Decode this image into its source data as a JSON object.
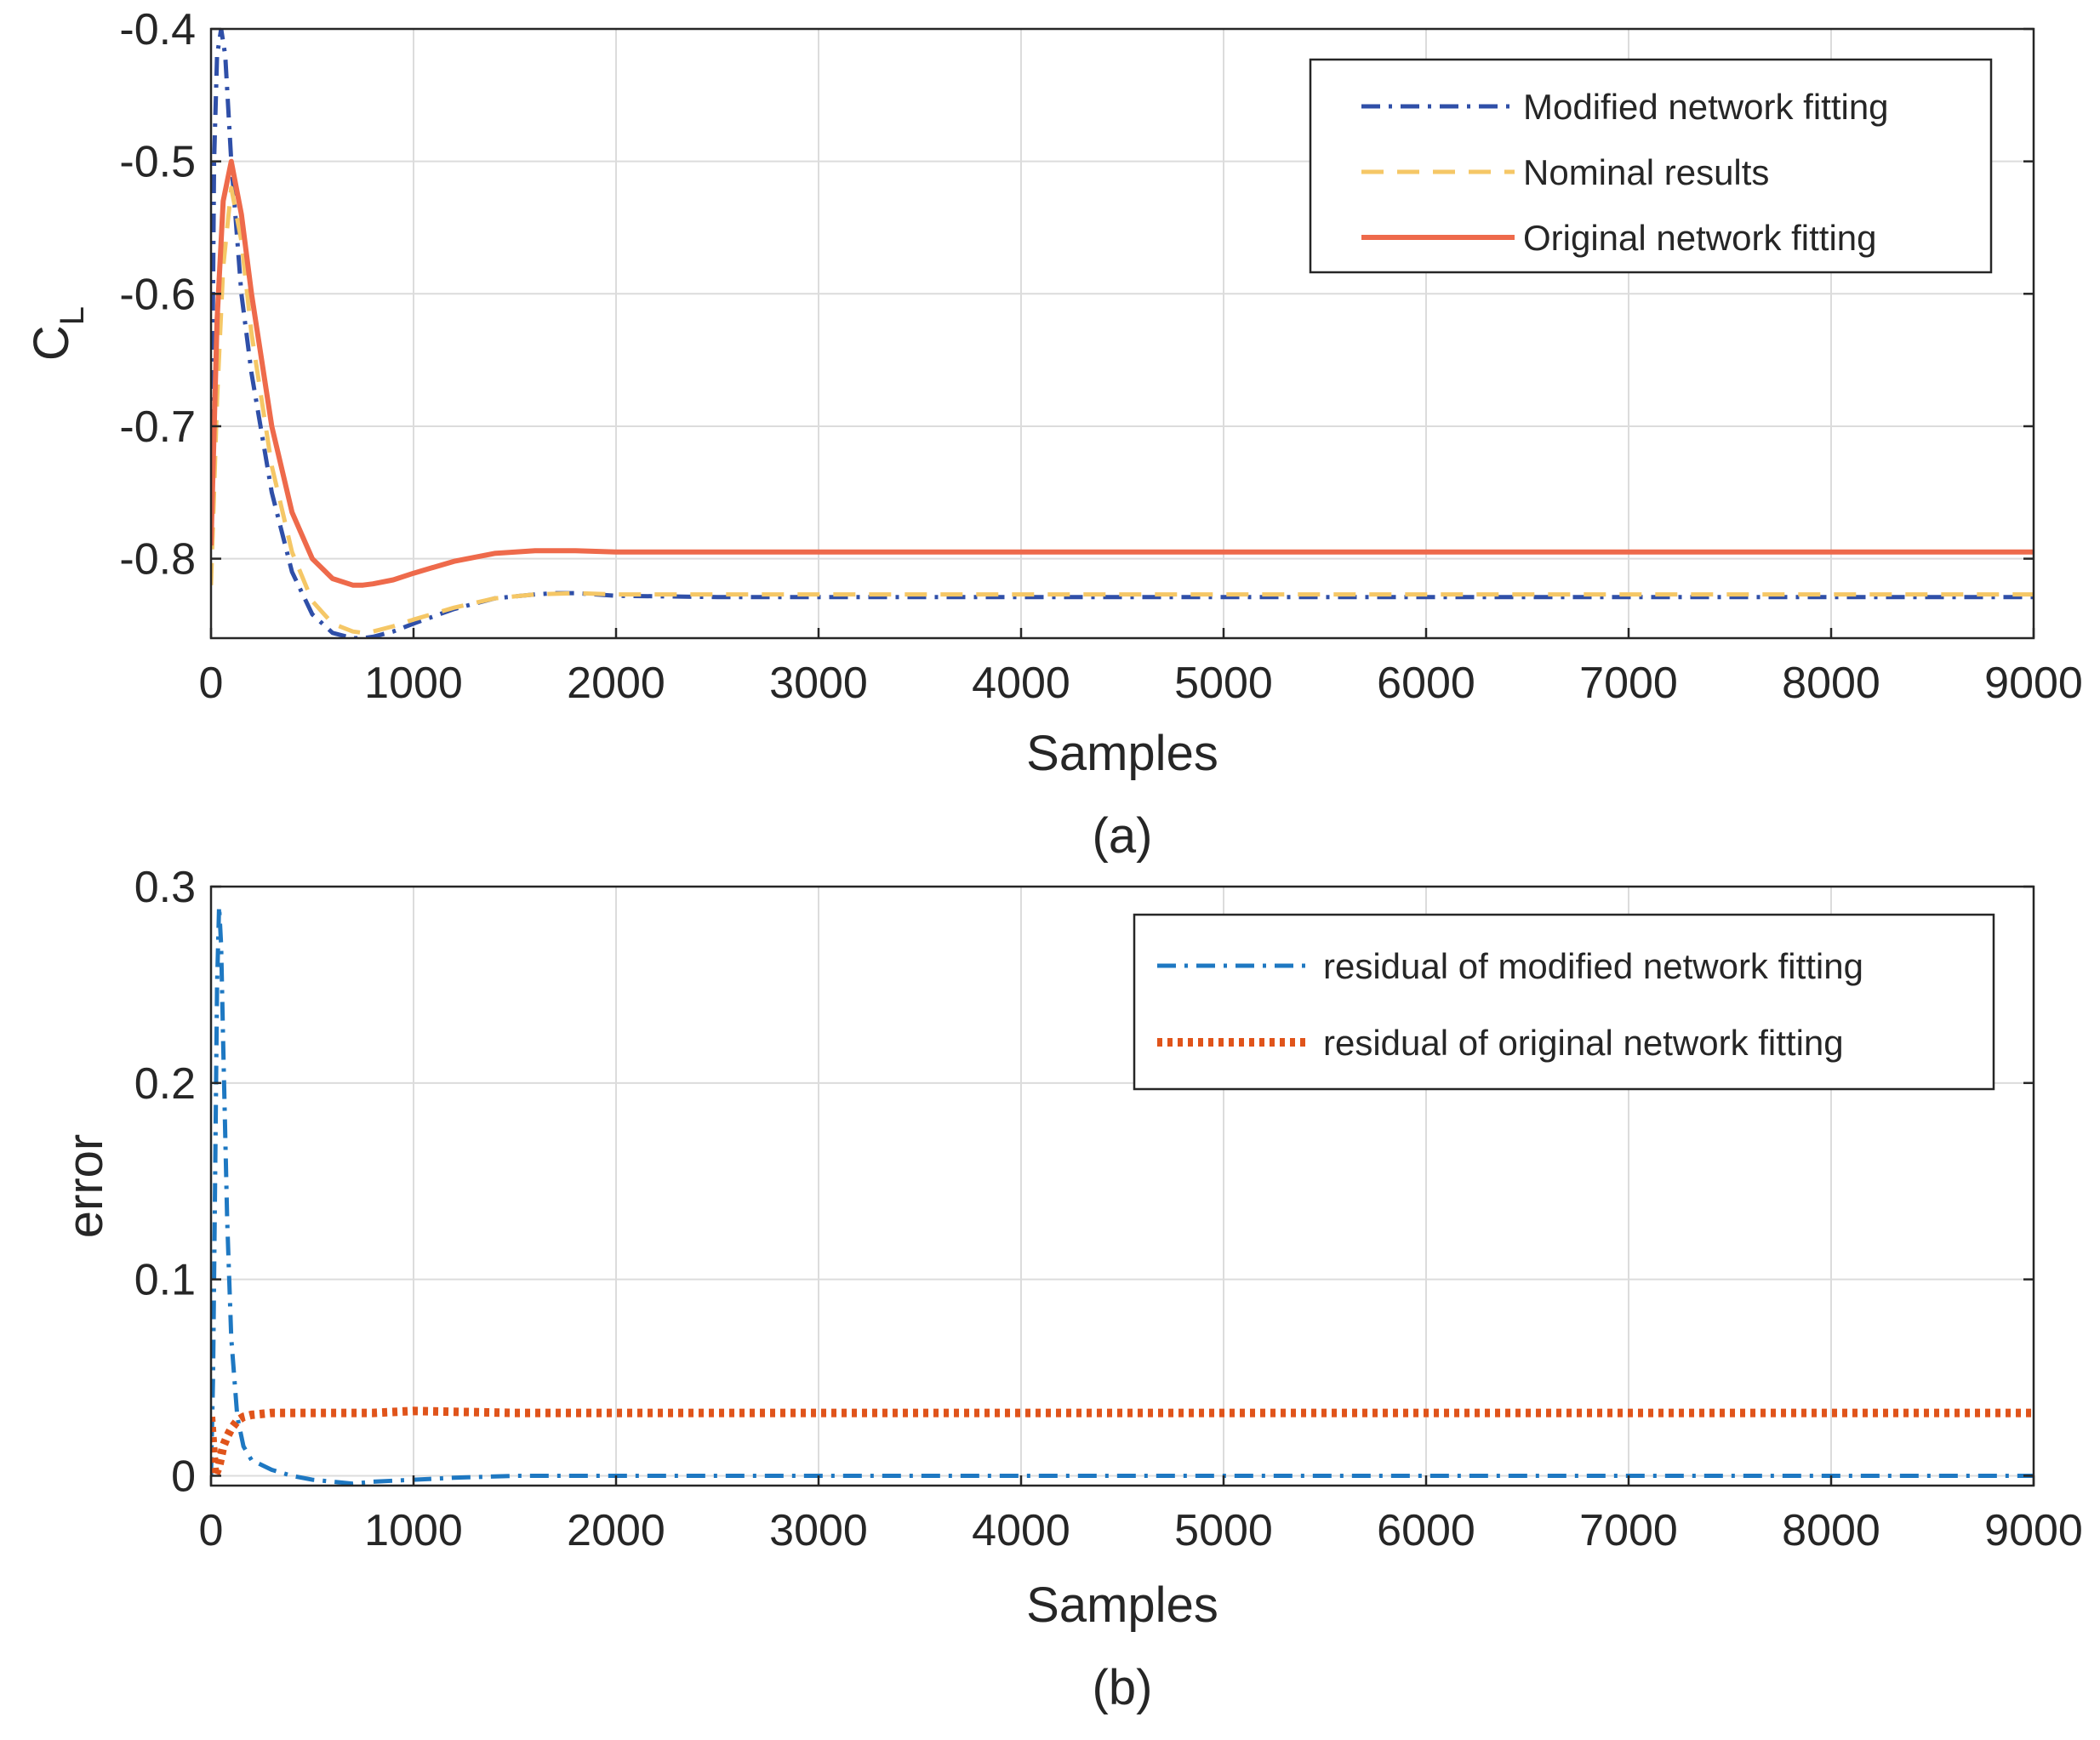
{
  "chart_data": [
    {
      "id": "a",
      "type": "line",
      "caption": "(a)",
      "xlabel": "Samples",
      "ylabel": "C",
      "ylabel_subscript": "L",
      "xlim": [
        0,
        9000
      ],
      "ylim": [
        -0.86,
        -0.4
      ],
      "xticks": [
        0,
        1000,
        2000,
        3000,
        4000,
        5000,
        6000,
        7000,
        8000,
        9000
      ],
      "yticks": [
        -0.4,
        -0.5,
        -0.6,
        -0.7,
        -0.8
      ],
      "grid": true,
      "legend_position": "top-right",
      "series": [
        {
          "name": "Modified network fitting",
          "color": "#2f4fa8",
          "style": "dashdot",
          "x": [
            0,
            15,
            30,
            50,
            70,
            100,
            150,
            200,
            300,
            400,
            500,
            600,
            700,
            750,
            800,
            900,
            1000,
            1200,
            1400,
            1600,
            1700,
            1800,
            2000,
            2500,
            3000,
            5000,
            9000
          ],
          "y": [
            -0.79,
            -0.5,
            -0.42,
            -0.4,
            -0.42,
            -0.5,
            -0.6,
            -0.66,
            -0.75,
            -0.81,
            -0.842,
            -0.856,
            -0.86,
            -0.86,
            -0.859,
            -0.855,
            -0.849,
            -0.838,
            -0.83,
            -0.827,
            -0.826,
            -0.826,
            -0.828,
            -0.829,
            -0.829,
            -0.829,
            -0.829
          ]
        },
        {
          "name": "Nominal results",
          "color": "#f5c766",
          "style": "dashed",
          "x": [
            0,
            30,
            60,
            100,
            150,
            200,
            300,
            400,
            500,
            600,
            700,
            750,
            800,
            900,
            1000,
            1200,
            1400,
            1600,
            1800,
            2000,
            2500,
            3000,
            5000,
            9000
          ],
          "y": [
            -0.82,
            -0.68,
            -0.58,
            -0.52,
            -0.56,
            -0.63,
            -0.73,
            -0.795,
            -0.832,
            -0.849,
            -0.855,
            -0.856,
            -0.855,
            -0.851,
            -0.846,
            -0.837,
            -0.83,
            -0.827,
            -0.826,
            -0.827,
            -0.827,
            -0.827,
            -0.827,
            -0.827
          ]
        },
        {
          "name": "Original network fitting",
          "color": "#ee6a4b",
          "style": "solid",
          "x": [
            0,
            30,
            60,
            100,
            150,
            200,
            300,
            400,
            500,
            600,
            700,
            750,
            800,
            900,
            1000,
            1200,
            1400,
            1600,
            1800,
            2000,
            2500,
            3000,
            5000,
            9000
          ],
          "y": [
            -0.79,
            -0.62,
            -0.53,
            -0.5,
            -0.54,
            -0.6,
            -0.7,
            -0.765,
            -0.8,
            -0.815,
            -0.82,
            -0.82,
            -0.819,
            -0.816,
            -0.811,
            -0.802,
            -0.796,
            -0.794,
            -0.794,
            -0.795,
            -0.795,
            -0.795,
            -0.795,
            -0.795
          ]
        }
      ]
    },
    {
      "id": "b",
      "type": "line",
      "caption": "(b)",
      "xlabel": "Samples",
      "ylabel": "error",
      "xlim": [
        0,
        9000
      ],
      "ylim": [
        -0.005,
        0.3
      ],
      "xticks": [
        0,
        1000,
        2000,
        3000,
        4000,
        5000,
        6000,
        7000,
        8000,
        9000
      ],
      "yticks": [
        0,
        0.1,
        0.2,
        0.3
      ],
      "grid": true,
      "legend_position": "top-right",
      "series": [
        {
          "name": "residual of modified network fitting",
          "color": "#1e78c2",
          "style": "dashdot",
          "x": [
            0,
            10,
            20,
            30,
            40,
            50,
            60,
            80,
            100,
            130,
            160,
            200,
            300,
            400,
            500,
            600,
            700,
            800,
            1000,
            1200,
            1500,
            2000,
            3000,
            9000
          ],
          "y": [
            0.0,
            0.05,
            0.15,
            0.25,
            0.29,
            0.27,
            0.22,
            0.13,
            0.07,
            0.03,
            0.015,
            0.008,
            0.003,
            0.0,
            -0.002,
            -0.003,
            -0.004,
            -0.003,
            -0.002,
            -0.001,
            0.0,
            0.0,
            0.0,
            0.0
          ]
        },
        {
          "name": "residual of original network fitting",
          "color": "#e0541b",
          "style": "dotted",
          "x": [
            0,
            20,
            40,
            60,
            80,
            100,
            130,
            160,
            200,
            300,
            500,
            800,
            1000,
            1500,
            2000,
            9000
          ],
          "y": [
            0.03,
            0.0,
            0.005,
            0.015,
            0.02,
            0.024,
            0.028,
            0.03,
            0.031,
            0.032,
            0.032,
            0.032,
            0.033,
            0.032,
            0.032,
            0.032
          ]
        }
      ]
    }
  ]
}
